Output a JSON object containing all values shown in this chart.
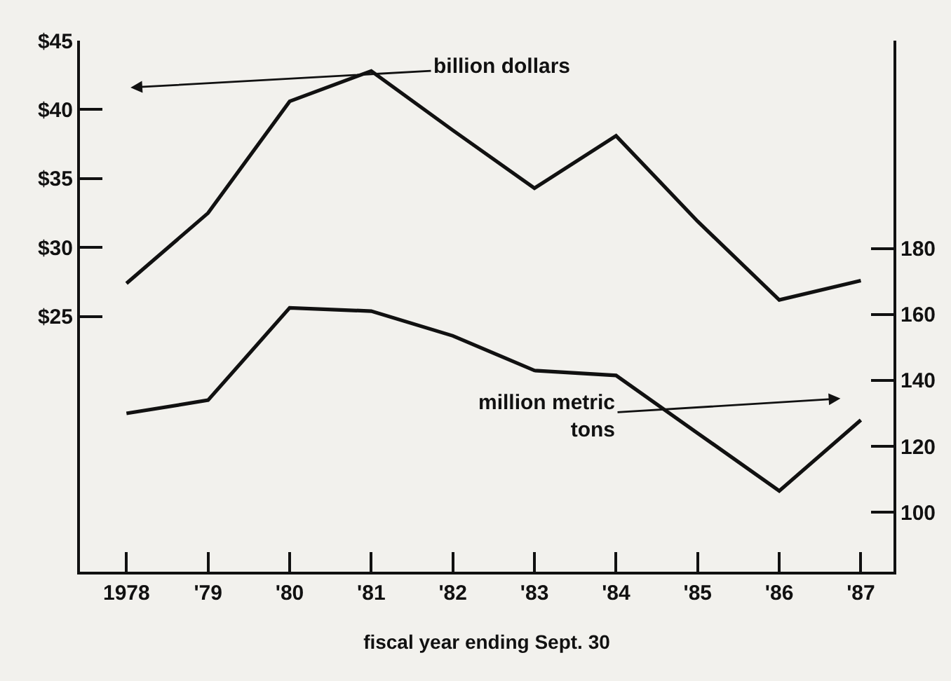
{
  "chart_data": {
    "type": "line",
    "xlabel": "fiscal year ending Sept. 30",
    "categories": [
      "1978",
      "'79",
      "'80",
      "'81",
      "'82",
      "'83",
      "'84",
      "'85",
      "'86",
      "'87"
    ],
    "series": [
      {
        "name": "billion dollars",
        "color": "#111111",
        "values": [
          27.4,
          32.5,
          40.6,
          42.8,
          38.5,
          34.3,
          38.1,
          31.9,
          26.2,
          27.6
        ]
      },
      {
        "name": "million metric tons",
        "color": "#111111",
        "axis": "y2",
        "values": [
          130,
          134,
          162,
          161,
          153.5,
          143,
          141.5,
          124,
          106.5,
          128
        ]
      }
    ],
    "ylim": [
      6.5,
      45
    ],
    "yticks": [
      {
        "value": 25,
        "label": "$25"
      },
      {
        "value": 30,
        "label": "$30"
      },
      {
        "value": 35,
        "label": "$35"
      },
      {
        "value": 40,
        "label": "$40"
      },
      {
        "value": 45,
        "label": "$45"
      }
    ],
    "y2lim": [
      82,
      243
    ],
    "y2ticks": [
      100,
      120,
      140,
      160,
      180
    ],
    "grid": false,
    "legend": false,
    "marker": "none",
    "line_style": "solid"
  }
}
